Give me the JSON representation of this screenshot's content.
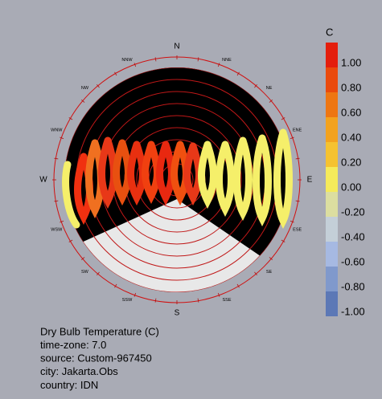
{
  "compass": {
    "major": [
      "N",
      "E",
      "S",
      "W"
    ],
    "minor": [
      "NNE",
      "NE",
      "ENE",
      "ESE",
      "SE",
      "SSE",
      "SSW",
      "SW",
      "WSW",
      "WNW",
      "NW",
      "NNW"
    ]
  },
  "legend": {
    "title": "C",
    "labels": [
      "1.00",
      "0.80",
      "0.60",
      "0.40",
      "0.20",
      "0.00",
      "-0.20",
      "-0.40",
      "-0.60",
      "-0.80",
      "-1.00"
    ]
  },
  "info": [
    "Dry Bulb Temperature (C)",
    "time-zone: 7.0",
    "source: Custom-967450",
    "city: Jakarta.Obs",
    "country: IDN"
  ]
}
